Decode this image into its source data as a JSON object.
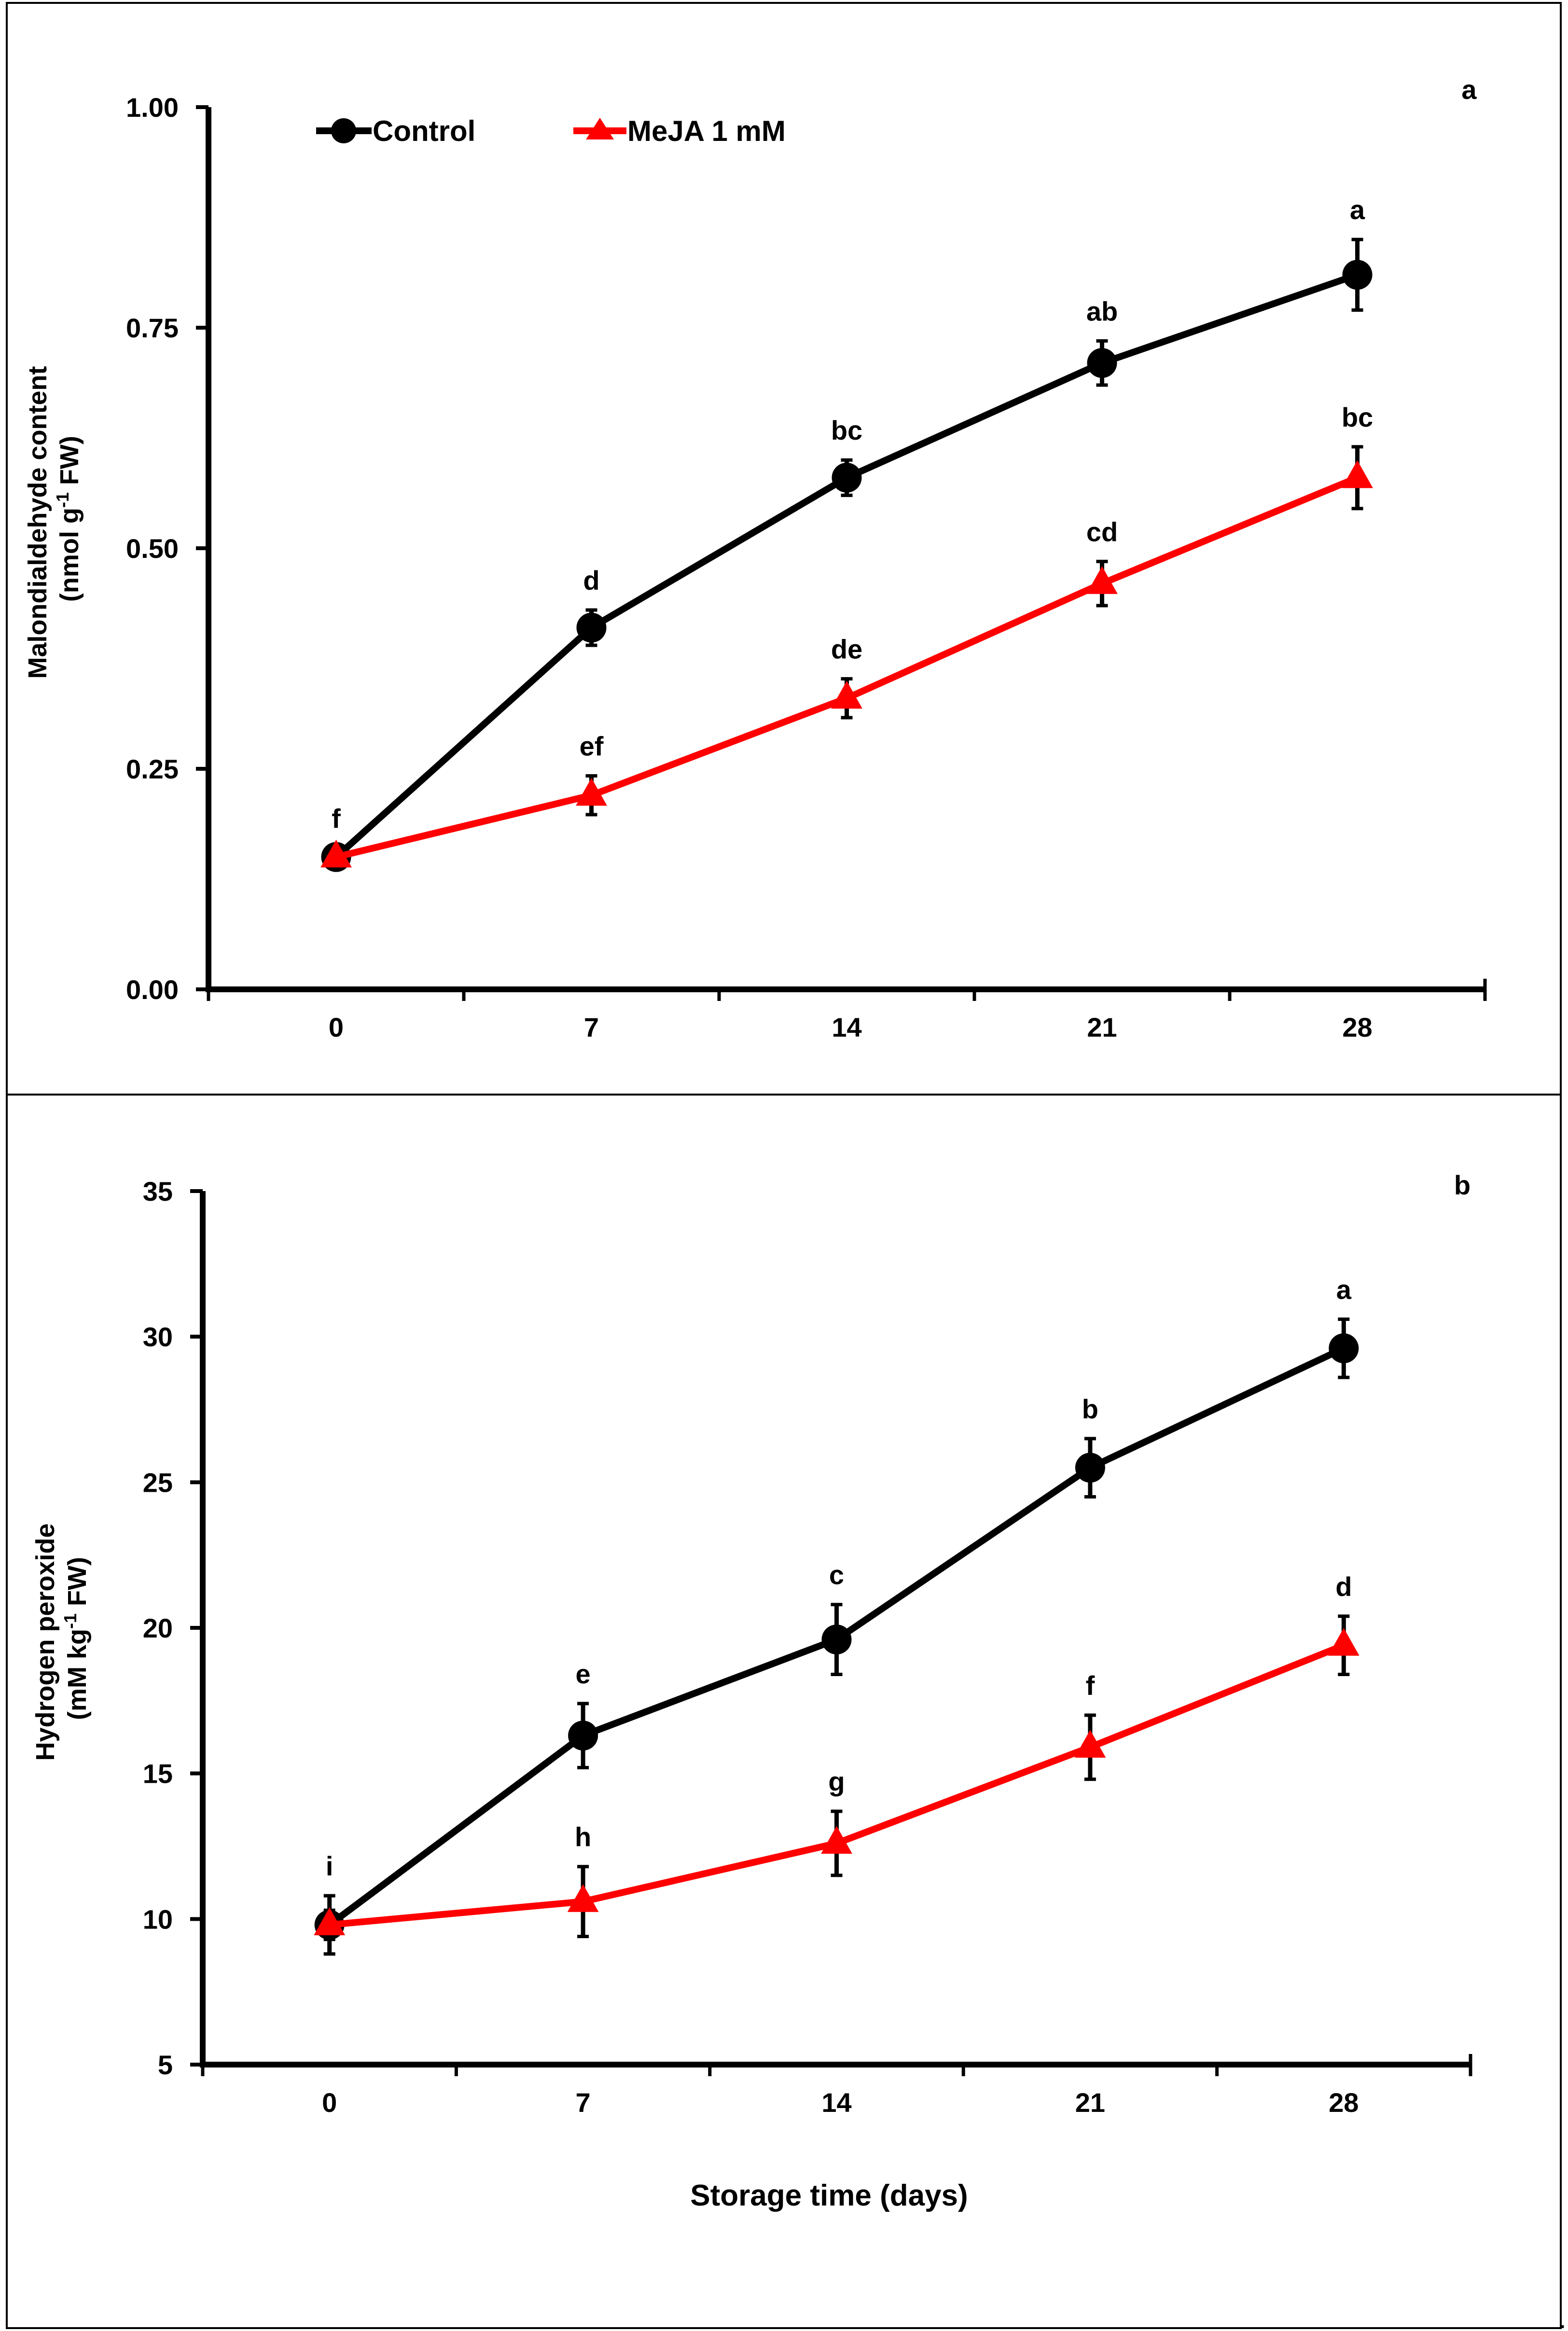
{
  "figure": {
    "xlabel": "Storage time (days)",
    "trailing_mark": "."
  },
  "chart_data": [
    {
      "type": "line",
      "panel_label": "a",
      "ylabel_line1": "Malondialdehyde content",
      "ylabel_line2_pre": "(nmol g",
      "ylabel_line2_sup": "-1",
      "ylabel_line2_post": " FW)",
      "x": [
        0,
        7,
        14,
        21,
        28
      ],
      "xlim": [
        -3.5,
        31.5
      ],
      "ylim": [
        0,
        1
      ],
      "yticks": [
        0,
        0.25,
        0.5,
        0.75,
        1
      ],
      "ytick_labels": [
        "0.00",
        "0.25",
        "0.50",
        "0.75",
        "1.00"
      ],
      "xtick_labels": [
        "0",
        "7",
        "14",
        "21",
        "28"
      ],
      "legend_placement": "top-left",
      "series": [
        {
          "name": "Control",
          "color": "#000000",
          "marker": "circle",
          "values": [
            0.15,
            0.41,
            0.58,
            0.71,
            0.81
          ],
          "errors": [
            0.01,
            0.02,
            0.02,
            0.025,
            0.04
          ],
          "letters": [
            "f",
            "d",
            "bc",
            "ab",
            "a"
          ]
        },
        {
          "name": "MeJA 1 mM",
          "color": "#ff0000",
          "marker": "triangle",
          "values": [
            0.15,
            0.22,
            0.33,
            0.46,
            0.58
          ],
          "errors": [
            0.01,
            0.022,
            0.022,
            0.025,
            0.035
          ],
          "letters": [
            "",
            "ef",
            "de",
            "cd",
            "bc"
          ]
        }
      ]
    },
    {
      "type": "line",
      "panel_label": "b",
      "ylabel_line1": "Hydrogen peroxide",
      "ylabel_line2_pre": "(mM kg",
      "ylabel_line2_sup": "-1",
      "ylabel_line2_post": " FW)",
      "x": [
        0,
        7,
        14,
        21,
        28
      ],
      "xlim": [
        -3.5,
        31.5
      ],
      "ylim": [
        5,
        35
      ],
      "yticks": [
        5,
        10,
        15,
        20,
        25,
        30,
        35
      ],
      "ytick_labels": [
        "5",
        "10",
        "15",
        "20",
        "25",
        "30",
        "35"
      ],
      "xtick_labels": [
        "0",
        "7",
        "14",
        "21",
        "28"
      ],
      "series": [
        {
          "color": "#000000",
          "marker": "circle",
          "values": [
            9.8,
            16.3,
            19.6,
            25.5,
            29.6
          ],
          "errors": [
            1.0,
            1.1,
            1.2,
            1.0,
            1.0
          ],
          "letters": [
            "i",
            "e",
            "c",
            "b",
            "a"
          ]
        },
        {
          "color": "#ff0000",
          "marker": "triangle",
          "values": [
            9.8,
            10.6,
            12.6,
            15.9,
            19.4
          ],
          "errors": [
            0.5,
            1.2,
            1.1,
            1.1,
            1.0
          ],
          "letters": [
            "",
            "h",
            "g",
            "f",
            "d"
          ]
        }
      ]
    }
  ]
}
